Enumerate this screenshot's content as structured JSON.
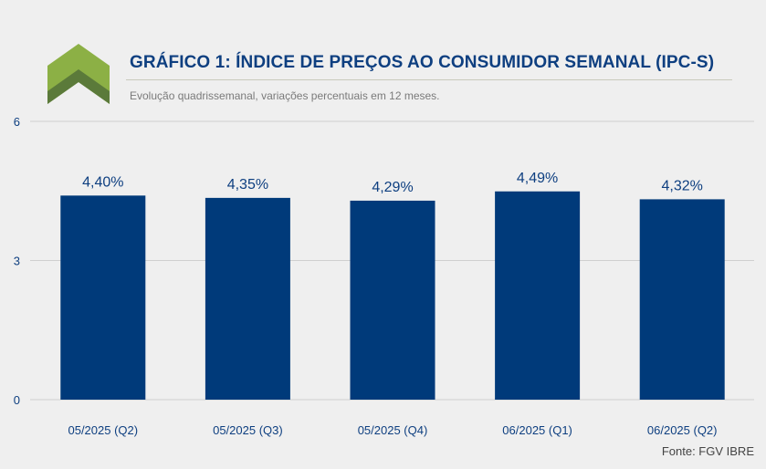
{
  "header": {
    "title": "GRÁFICO 1: ÍNDICE DE PREÇOS AO CONSUMIDOR SEMANAL (IPC-S)",
    "subtitle": "Evolução quadrissemanal, variações percentuais em 12 meses."
  },
  "logo_icon": "double-chevron-up-icon",
  "colors": {
    "bar": "#003a7a",
    "title": "#0e3f80",
    "logo_light": "#8cb045",
    "logo_dark": "#5b7a3a",
    "grid": "#cfcfcf",
    "background": "#efefef"
  },
  "chart_data": {
    "type": "bar",
    "categories": [
      "05/2025 (Q2)",
      "05/2025 (Q3)",
      "05/2025 (Q4)",
      "06/2025 (Q1)",
      "06/2025 (Q2)"
    ],
    "values": [
      4.4,
      4.35,
      4.29,
      4.49,
      4.32
    ],
    "data_labels": [
      "4,40%",
      "4,35%",
      "4,29%",
      "4,49%",
      "4,32%"
    ],
    "yticks": [
      0,
      3,
      6
    ],
    "ylim": [
      0,
      6
    ],
    "grid": true,
    "title": "GRÁFICO 1: ÍNDICE DE PREÇOS AO CONSUMIDOR SEMANAL (IPC-S)",
    "xlabel": "",
    "ylabel": ""
  },
  "footer": {
    "source": "Fonte: FGV IBRE"
  }
}
